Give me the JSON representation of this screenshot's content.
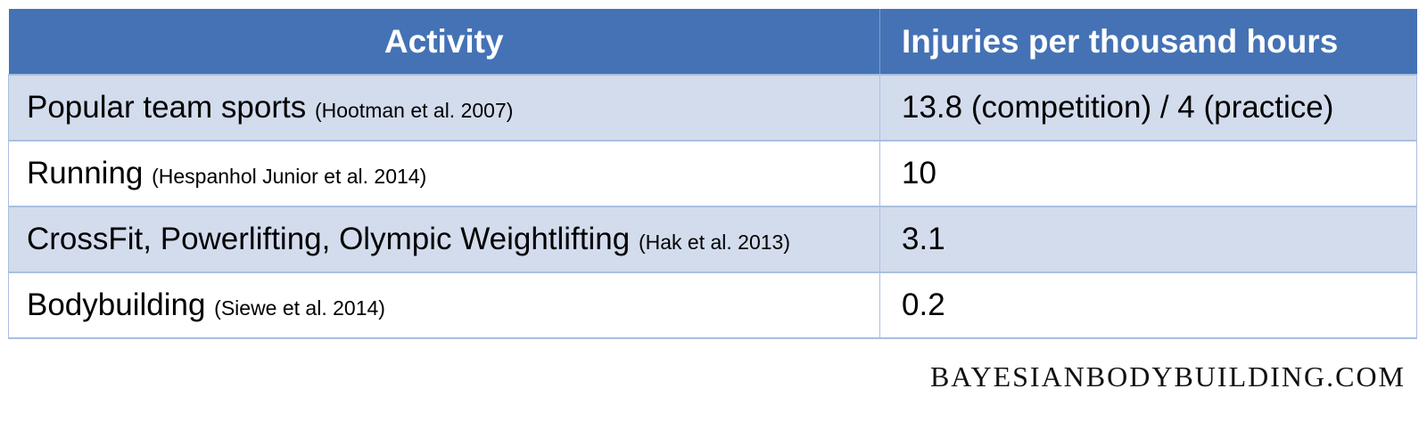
{
  "table": {
    "headers": {
      "activity": "Activity",
      "injuries": "Injuries per thousand hours"
    },
    "rows": [
      {
        "activity": "Popular team sports",
        "citation": "(Hootman et al. 2007)",
        "value": "13.8 (competition) / 4 (practice)"
      },
      {
        "activity": "Running",
        "citation": "(Hespanhol Junior et al. 2014)",
        "value": "10"
      },
      {
        "activity": "CrossFit, Powerlifting, Olympic Weightlifting",
        "citation": "(Hak et al. 2013)",
        "value": "3.1"
      },
      {
        "activity": "Bodybuilding",
        "citation": "(Siewe et al. 2014)",
        "value": "0.2"
      }
    ]
  },
  "watermark": "BAYESIANBODYBUILDING.COM",
  "colors": {
    "header_bg": "#4472b5",
    "shaded_row_bg": "#d3dced",
    "border": "#a9bfe0"
  }
}
